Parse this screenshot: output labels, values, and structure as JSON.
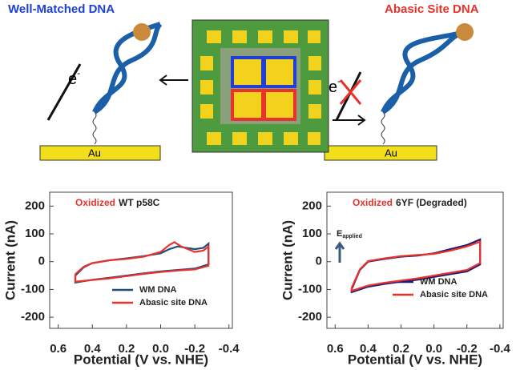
{
  "diagram": {
    "left_label": "Well-Matched DNA",
    "right_label": "Abasic Site DNA",
    "left_electron": {
      "base": "e",
      "sup": "-"
    },
    "right_electron": {
      "base": "e",
      "sup": "-"
    },
    "left_electrode": "Au",
    "right_electrode": "Au"
  },
  "chart_data": [
    {
      "type": "line",
      "title": {
        "highlight": "Oxidized",
        "rest": "WT p58C"
      },
      "x_label": "Potential (V vs. NHE)",
      "y_label": "Current (nA)",
      "xlim": [
        0.65,
        -0.42
      ],
      "ylim": [
        -240,
        250
      ],
      "xticks": [
        0.6,
        0.4,
        0.2,
        {
          "value": 0,
          "label": "0.0"
        },
        -0.2,
        -0.4
      ],
      "yticks": [
        200,
        100,
        0,
        -100,
        -200
      ],
      "series": [
        {
          "name": "WM DNA",
          "color": "#1f4e79",
          "x": [
            0.5,
            0.45,
            0.4,
            0.3,
            0.2,
            0.1,
            0.0,
            -0.05,
            -0.1,
            -0.15,
            -0.2,
            -0.25,
            -0.28,
            -0.28,
            -0.2,
            -0.1,
            0.0,
            0.1,
            0.2,
            0.3,
            0.4,
            0.5,
            0.5
          ],
          "values": [
            -50,
            -20,
            -5,
            5,
            12,
            20,
            30,
            45,
            55,
            50,
            45,
            50,
            65,
            -10,
            -25,
            -30,
            -35,
            -42,
            -50,
            -58,
            -65,
            -75,
            -50
          ]
        },
        {
          "name": "Abasic site DNA",
          "color": "#e8322b",
          "x": [
            0.5,
            0.45,
            0.4,
            0.3,
            0.2,
            0.1,
            0.0,
            -0.05,
            -0.08,
            -0.12,
            -0.2,
            -0.25,
            -0.28,
            -0.28,
            -0.2,
            -0.1,
            0.0,
            0.1,
            0.2,
            0.3,
            0.4,
            0.5,
            0.5
          ],
          "values": [
            -45,
            -18,
            -5,
            5,
            10,
            18,
            35,
            60,
            70,
            55,
            35,
            40,
            55,
            -15,
            -28,
            -32,
            -37,
            -44,
            -52,
            -60,
            -66,
            -72,
            -45
          ]
        }
      ],
      "legend": "lower right"
    },
    {
      "type": "line",
      "title": {
        "highlight": "Oxidized",
        "rest": "6YF (Degraded)"
      },
      "x_label": "Potential (V vs. NHE)",
      "y_label": "Current (nA)",
      "annotation": {
        "base": "E",
        "sub": "applied"
      },
      "xlim": [
        0.65,
        -0.42
      ],
      "ylim": [
        -240,
        250
      ],
      "xticks": [
        0.6,
        0.4,
        0.2,
        {
          "value": 0,
          "label": "0.0"
        },
        -0.2,
        -0.4
      ],
      "yticks": [
        200,
        100,
        0,
        -100,
        -200
      ],
      "series": [
        {
          "name": "WM DNA",
          "color": "#1c1c7a",
          "x": [
            0.5,
            0.45,
            0.4,
            0.3,
            0.2,
            0.1,
            0.0,
            -0.1,
            -0.2,
            -0.28,
            -0.28,
            -0.2,
            -0.1,
            0.0,
            0.1,
            0.2,
            0.3,
            0.4,
            0.5,
            0.5
          ],
          "values": [
            -100,
            -30,
            0,
            10,
            18,
            22,
            30,
            45,
            60,
            80,
            -10,
            -35,
            -45,
            -55,
            -65,
            -72,
            -80,
            -90,
            -110,
            -100
          ]
        },
        {
          "name": "Abasic site DNA",
          "color": "#e8322b",
          "x": [
            0.5,
            0.45,
            0.4,
            0.3,
            0.2,
            0.1,
            0.0,
            -0.1,
            -0.2,
            -0.28,
            -0.28,
            -0.2,
            -0.1,
            0.0,
            0.1,
            0.2,
            0.3,
            0.4,
            0.5,
            0.5
          ],
          "values": [
            -95,
            -28,
            2,
            12,
            20,
            24,
            28,
            40,
            55,
            72,
            -5,
            -30,
            -40,
            -50,
            -60,
            -68,
            -76,
            -86,
            -105,
            -95
          ]
        }
      ],
      "legend": "lower right"
    }
  ]
}
